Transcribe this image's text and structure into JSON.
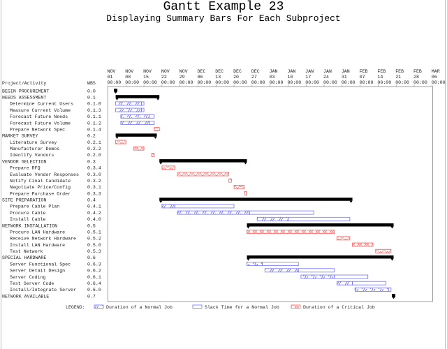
{
  "title": "Gantt Example 23",
  "subtitle": "Displaying Summary Bars For Each Subproject",
  "chart_data": {
    "type": "gantt",
    "column_headers": {
      "activity": "Project/Activity",
      "wbs": "WBS"
    },
    "axis_ticks": [
      [
        "NOV",
        "01"
      ],
      [
        "NOV",
        "08"
      ],
      [
        "NOV",
        "15"
      ],
      [
        "NOV",
        "22"
      ],
      [
        "NOV",
        "29"
      ],
      [
        "DEC",
        "06"
      ],
      [
        "DEC",
        "13"
      ],
      [
        "DEC",
        "20"
      ],
      [
        "DEC",
        "27"
      ],
      [
        "JAN",
        "03"
      ],
      [
        "JAN",
        "10"
      ],
      [
        "JAN",
        "17"
      ],
      [
        "JAN",
        "24"
      ],
      [
        "JAN",
        "31"
      ],
      [
        "FEB",
        "07"
      ],
      [
        "FEB",
        "14"
      ],
      [
        "FEB",
        "21"
      ],
      [
        "FEB",
        "28"
      ],
      [
        "MAR",
        "06"
      ]
    ],
    "tick_time": "00:00",
    "colors": {
      "normal": "#7070ff",
      "critical": "#ff6060",
      "summary": "#000000"
    },
    "rows": [
      {
        "name": "BEGIN PROCUREMENT",
        "wbs": "0.0",
        "kind": "milestone",
        "start": "Nov 04"
      },
      {
        "name": "NEEDS ASSESSMENT",
        "wbs": "0.1",
        "kind": "summary",
        "start": "Nov 04",
        "end": "Nov 21"
      },
      {
        "name": "Determine Current Users",
        "wbs": "0.1.0",
        "kind": "normal",
        "start": "Nov 04",
        "end": "Nov 14",
        "late_finish": "Nov 15"
      },
      {
        "name": "Measure Current Volume",
        "wbs": "0.1.3",
        "kind": "normal",
        "start": "Nov 04",
        "end": "Nov 14",
        "late_finish": "Nov 15"
      },
      {
        "name": "Forecast Future Needs",
        "wbs": "0.1.1",
        "kind": "normal",
        "start": "Nov 06",
        "end": "Nov 17",
        "late_finish": "Nov 19"
      },
      {
        "name": "Forecast Future Volume",
        "wbs": "0.1.2",
        "kind": "normal",
        "start": "Nov 06",
        "end": "Nov 17",
        "late_finish": "Nov 19"
      },
      {
        "name": "Prepare Network Spec",
        "wbs": "0.1.4",
        "kind": "critical",
        "start": "Nov 19",
        "end": "Nov 21"
      },
      {
        "name": "MARKET SURVEY",
        "wbs": "0.2",
        "kind": "summary",
        "start": "Nov 04",
        "end": "Nov 20"
      },
      {
        "name": "Literature Survey",
        "wbs": "0.2.1",
        "kind": "critical",
        "start": "Nov 04",
        "end": "Nov 08"
      },
      {
        "name": "Manufacturer Demos",
        "wbs": "0.2.2",
        "kind": "critical",
        "start": "Nov 11",
        "end": "Nov 15"
      },
      {
        "name": "Identify Vendors",
        "wbs": "0.2.0",
        "kind": "critical",
        "start": "Nov 18",
        "end": "Nov 19"
      },
      {
        "name": "VENDOR SELECTION",
        "wbs": "0.3",
        "kind": "summary",
        "start": "Nov 21",
        "end": "Dec 25"
      },
      {
        "name": "Prepare RFQ",
        "wbs": "0.3.4",
        "kind": "critical",
        "start": "Nov 22",
        "end": "Nov 27"
      },
      {
        "name": "Evaluate Vendor Responses",
        "wbs": "0.3.0",
        "kind": "critical",
        "start": "Nov 28",
        "end": "Dec 18"
      },
      {
        "name": "Notify Final Candidate",
        "wbs": "0.3.2",
        "kind": "critical",
        "start": "Dec 18",
        "end": "Dec 19"
      },
      {
        "name": "Negotiate Price/Config",
        "wbs": "0.3.1",
        "kind": "critical",
        "start": "Dec 20",
        "end": "Dec 24"
      },
      {
        "name": "Prepare Purchase Order",
        "wbs": "0.3.3",
        "kind": "critical",
        "start": "Dec 24",
        "end": "Dec 25"
      },
      {
        "name": "SITE PREPARATION",
        "wbs": "0.4",
        "kind": "summary",
        "start": "Nov 21",
        "end": "Feb 04"
      },
      {
        "name": "Prepare Cable Plan",
        "wbs": "0.4.1",
        "kind": "normal",
        "start": "Nov 22",
        "end": "Nov 27",
        "late_finish": "Dec 20"
      },
      {
        "name": "Procure Cable",
        "wbs": "0.4.2",
        "kind": "normal",
        "start": "Nov 28",
        "end": "Dec 26",
        "late_finish": "Jan 20"
      },
      {
        "name": "Install Cable",
        "wbs": "0.4.0",
        "kind": "normal",
        "start": "Dec 29",
        "end": "Jan 10",
        "late_finish": "Feb 03"
      },
      {
        "name": "NETWORK INSTALLATION",
        "wbs": "0.5",
        "kind": "summary",
        "start": "Dec 25",
        "end": "Feb 20"
      },
      {
        "name": "Procure LAN Hardware",
        "wbs": "0.5.1",
        "kind": "critical",
        "start": "Dec 25",
        "end": "Jan 28"
      },
      {
        "name": "Receive Network Hardware",
        "wbs": "0.5.2",
        "kind": "critical",
        "start": "Jan 29",
        "end": "Feb 03"
      },
      {
        "name": "Install LAN Hardware",
        "wbs": "0.5.0",
        "kind": "critical",
        "start": "Feb 04",
        "end": "Feb 12"
      },
      {
        "name": "Test Network",
        "wbs": "0.5.3",
        "kind": "critical",
        "start": "Feb 13",
        "end": "Feb 19"
      },
      {
        "name": "SPECIAL HARDWARE",
        "wbs": "0.6",
        "kind": "summary",
        "start": "Dec 25",
        "end": "Feb 20"
      },
      {
        "name": "Server Functional Spec",
        "wbs": "0.6.3",
        "kind": "normal",
        "start": "Dec 25",
        "end": "Dec 31",
        "late_finish": "Jan 14"
      },
      {
        "name": "Server Detail Design",
        "wbs": "0.6.2",
        "kind": "normal",
        "start": "Jan 01",
        "end": "Jan 14",
        "late_finish": "Jan 28"
      },
      {
        "name": "Server Coding",
        "wbs": "0.6.1",
        "kind": "normal",
        "start": "Jan 15",
        "end": "Jan 28",
        "late_finish": "Feb 10"
      },
      {
        "name": "Test Server Code",
        "wbs": "0.6.4",
        "kind": "normal",
        "start": "Jan 29",
        "end": "Feb 04",
        "late_finish": "Feb 17"
      },
      {
        "name": "Install/Integrate Server",
        "wbs": "0.6.0",
        "kind": "normal",
        "start": "Feb 05",
        "end": "Feb 18",
        "late_finish": "Feb 19"
      },
      {
        "name": "NETWORK AVAILABLE",
        "wbs": "0.7",
        "kind": "milestone",
        "start": "Feb 20"
      }
    ],
    "legend": {
      "label": "LEGEND:",
      "items": [
        {
          "kind": "normal",
          "text": "Duration of a Normal Job"
        },
        {
          "kind": "slack",
          "text": "Slack Time for a Normal Job"
        },
        {
          "kind": "critical",
          "text": "Duration of a Critical Job"
        }
      ]
    }
  }
}
